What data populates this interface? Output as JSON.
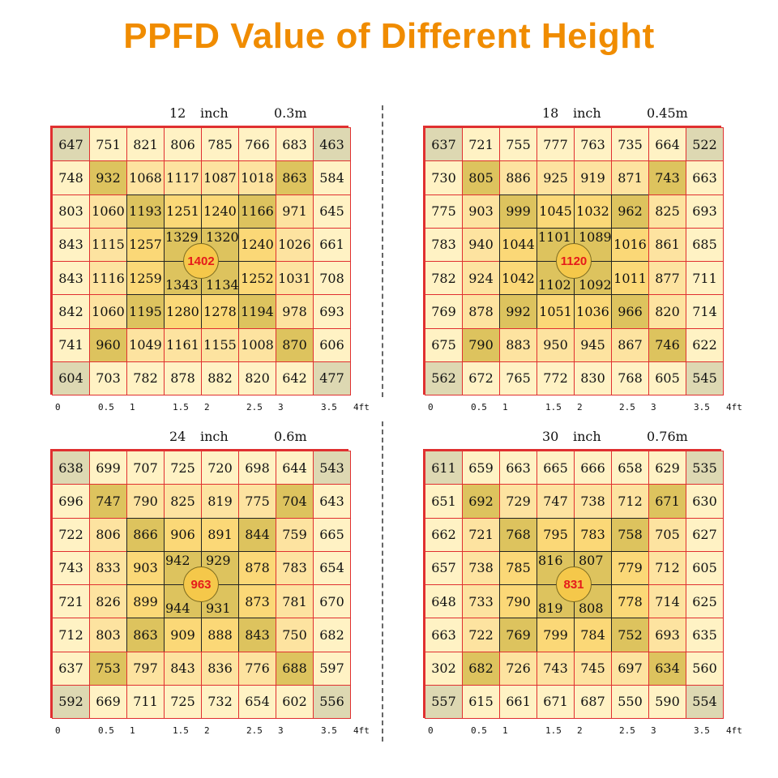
{
  "title": "PPFD Value of Different Height",
  "panels": [
    {
      "height_in": "12",
      "unit_in": "inch",
      "height_m": "0.3m",
      "center": "1402",
      "center_block": [
        "1329",
        "1320",
        "1343",
        "1134"
      ],
      "rows": [
        [
          "647",
          "751",
          "821",
          "806",
          "785",
          "766",
          "683",
          "463"
        ],
        [
          "748",
          "932",
          "1068",
          "1117",
          "1087",
          "1018",
          "863",
          "584"
        ],
        [
          "803",
          "1060",
          "1193",
          "1251",
          "1240",
          "1166",
          "971",
          "645"
        ],
        [
          "843",
          "1115",
          "1257",
          "",
          "",
          "1240",
          "1026",
          "661"
        ],
        [
          "843",
          "1116",
          "1259",
          "",
          "",
          "1252",
          "1031",
          "708"
        ],
        [
          "842",
          "1060",
          "1195",
          "1280",
          "1278",
          "1194",
          "978",
          "693"
        ],
        [
          "741",
          "960",
          "1049",
          "1161",
          "1155",
          "1008",
          "870",
          "606"
        ],
        [
          "604",
          "703",
          "782",
          "878",
          "882",
          "820",
          "642",
          "477"
        ]
      ]
    },
    {
      "height_in": "18",
      "unit_in": "inch",
      "height_m": "0.45m",
      "center": "1120",
      "center_block": [
        "1101",
        "1089",
        "1102",
        "1092"
      ],
      "rows": [
        [
          "637",
          "721",
          "755",
          "777",
          "763",
          "735",
          "664",
          "522"
        ],
        [
          "730",
          "805",
          "886",
          "925",
          "919",
          "871",
          "743",
          "663"
        ],
        [
          "775",
          "903",
          "999",
          "1045",
          "1032",
          "962",
          "825",
          "693"
        ],
        [
          "783",
          "940",
          "1044",
          "",
          "",
          "1016",
          "861",
          "685"
        ],
        [
          "782",
          "924",
          "1042",
          "",
          "",
          "1011",
          "877",
          "711"
        ],
        [
          "769",
          "878",
          "992",
          "1051",
          "1036",
          "966",
          "820",
          "714"
        ],
        [
          "675",
          "790",
          "883",
          "950",
          "945",
          "867",
          "746",
          "622"
        ],
        [
          "562",
          "672",
          "765",
          "772",
          "830",
          "768",
          "605",
          "545"
        ]
      ]
    },
    {
      "height_in": "24",
      "unit_in": "inch",
      "height_m": "0.6m",
      "center": "963",
      "center_block": [
        "942",
        "929",
        "944",
        "931"
      ],
      "rows": [
        [
          "638",
          "699",
          "707",
          "725",
          "720",
          "698",
          "644",
          "543"
        ],
        [
          "696",
          "747",
          "790",
          "825",
          "819",
          "775",
          "704",
          "643"
        ],
        [
          "722",
          "806",
          "866",
          "906",
          "891",
          "844",
          "759",
          "665"
        ],
        [
          "743",
          "833",
          "903",
          "",
          "",
          "878",
          "783",
          "654"
        ],
        [
          "721",
          "826",
          "899",
          "",
          "",
          "873",
          "781",
          "670"
        ],
        [
          "712",
          "803",
          "863",
          "909",
          "888",
          "843",
          "750",
          "682"
        ],
        [
          "637",
          "753",
          "797",
          "843",
          "836",
          "776",
          "688",
          "597"
        ],
        [
          "592",
          "669",
          "711",
          "725",
          "732",
          "654",
          "602",
          "556"
        ]
      ]
    },
    {
      "height_in": "30",
      "unit_in": "inch",
      "height_m": "0.76m",
      "center": "831",
      "center_block": [
        "816",
        "807",
        "819",
        "808"
      ],
      "rows": [
        [
          "611",
          "659",
          "663",
          "665",
          "666",
          "658",
          "629",
          "535"
        ],
        [
          "651",
          "692",
          "729",
          "747",
          "738",
          "712",
          "671",
          "630"
        ],
        [
          "662",
          "721",
          "768",
          "795",
          "783",
          "758",
          "705",
          "627"
        ],
        [
          "657",
          "738",
          "785",
          "",
          "",
          "779",
          "712",
          "605"
        ],
        [
          "648",
          "733",
          "790",
          "",
          "",
          "778",
          "714",
          "625"
        ],
        [
          "663",
          "722",
          "769",
          "799",
          "784",
          "752",
          "693",
          "635"
        ],
        [
          "302",
          "682",
          "726",
          "743",
          "745",
          "697",
          "634",
          "560"
        ],
        [
          "557",
          "615",
          "661",
          "671",
          "687",
          "550",
          "590",
          "554"
        ]
      ]
    }
  ],
  "x_ticks": [
    "0",
    "0.5",
    "1",
    "1.5",
    "2",
    "2.5",
    "3",
    "3.5",
    "4ft"
  ],
  "colors": {
    "title": "#f08c00",
    "light": "#fff2c4",
    "mid": "#fde3a0",
    "warm": "#fbd877",
    "hot": "#ddc35e",
    "corner": "#ddd8b2",
    "red_grid": "#e03030",
    "black_grid": "#222222",
    "center_text": "#e51b1b"
  }
}
